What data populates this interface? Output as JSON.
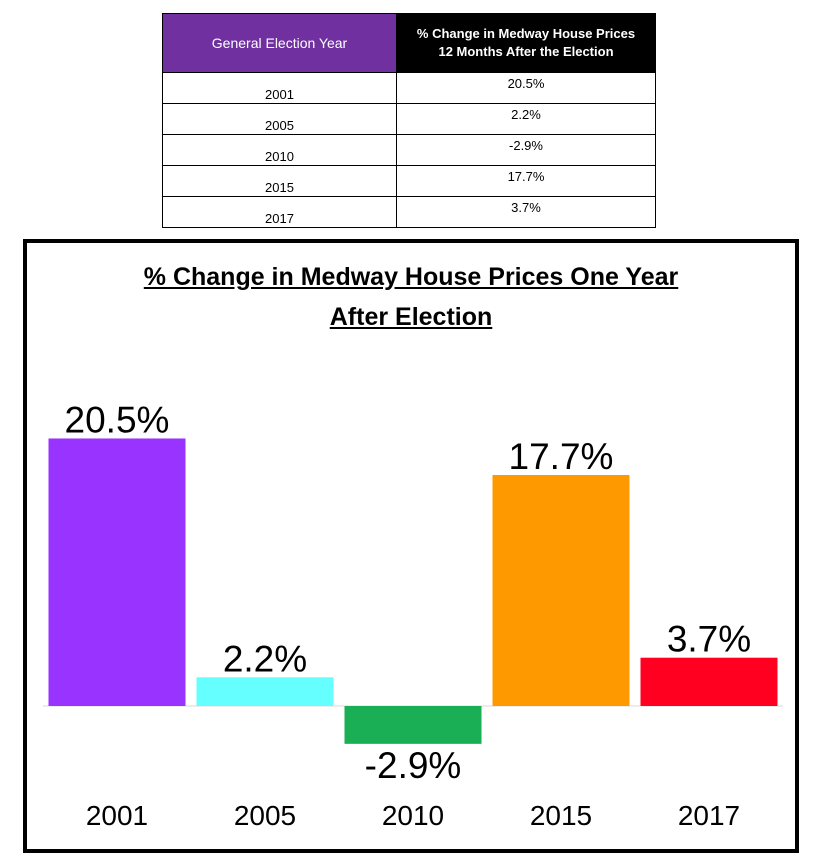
{
  "table": {
    "headers": [
      "General Election Year",
      "% Change in Medway House Prices 12 Months After the Election"
    ],
    "header_lines": [
      "% Change in Medway House Prices",
      "12 Months After the Election"
    ],
    "rows": [
      {
        "year": "2001",
        "change": "20.5%"
      },
      {
        "year": "2005",
        "change": "2.2%"
      },
      {
        "year": "2010",
        "change": "-2.9%"
      },
      {
        "year": "2015",
        "change": "17.7%"
      },
      {
        "year": "2017",
        "change": "3.7%"
      }
    ],
    "colors": {
      "header_left": "#7030a0",
      "header_right": "#000000"
    }
  },
  "chart_data": {
    "type": "bar",
    "title": "% Change in Medway House Prices One Year After Election",
    "title_lines": [
      "% Change in Medway House Prices One Year",
      "After Election"
    ],
    "categories": [
      "2001",
      "2005",
      "2010",
      "2015",
      "2017"
    ],
    "values": [
      20.5,
      2.2,
      -2.9,
      17.7,
      3.7
    ],
    "data_labels": [
      "20.5%",
      "2.2%",
      "-2.9%",
      "17.7%",
      "3.7%"
    ],
    "colors": [
      "#9933ff",
      "#66ffff",
      "#1aaf54",
      "#ff9900",
      "#ff0020"
    ],
    "xlabel": "",
    "ylabel": "",
    "grid": false,
    "legend": "none"
  }
}
